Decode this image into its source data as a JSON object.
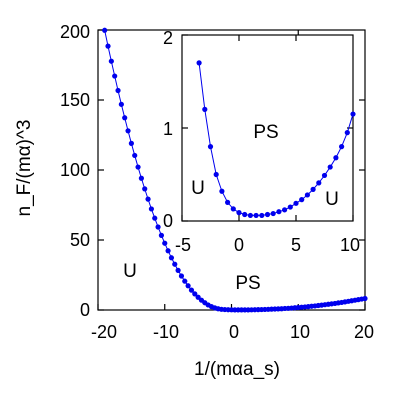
{
  "chart_data": [
    {
      "type": "scatter",
      "xlabel": "1/(mαa_s)",
      "ylabel": "n_F/(mα)^3",
      "xlim": [
        -20,
        20
      ],
      "ylim": [
        0,
        200
      ],
      "xticks": [
        "-20",
        "-10",
        "0",
        "10",
        "20"
      ],
      "yticks": [
        "0",
        "50",
        "100",
        "150",
        "200"
      ],
      "grid": false,
      "color": "#0000ee",
      "annotations": [
        "U",
        "PS"
      ],
      "series": [
        {
          "x": [
            -19,
            -18.5,
            -18,
            -17.5,
            -17,
            -16.5,
            -16,
            -15.5,
            -15,
            -14.5,
            -14,
            -13.5,
            -13,
            -12.5,
            -12,
            -11.5,
            -11,
            -10.5,
            -10,
            -9.5,
            -9,
            -8.5,
            -8,
            -7.5,
            -7,
            -6.5,
            -6,
            -5.5,
            -5,
            -4.5,
            -4,
            -3.5,
            -3,
            -2.5,
            -2,
            -1.5,
            -1,
            -0.5,
            0,
            0.5,
            1,
            1.5,
            2,
            2.5,
            3,
            3.5,
            4,
            4.5,
            5,
            5.5,
            6,
            6.5,
            7,
            7.5,
            8,
            8.5,
            9,
            9.5,
            10,
            10.5,
            11,
            11.5,
            12,
            12.5,
            13,
            13.5,
            14,
            14.5,
            15,
            15.5,
            16,
            16.5,
            17,
            17.5,
            18,
            18.5,
            19,
            19.5,
            20
          ],
          "y": [
            199.8,
            188.5,
            177.7,
            167.1,
            156.8,
            146.9,
            137.3,
            128.0,
            119.0,
            110.4,
            102.1,
            94.1,
            86.5,
            79.2,
            72.2,
            65.6,
            59.3,
            53.3,
            47.7,
            42.3,
            37.3,
            32.7,
            28.3,
            24.3,
            20.6,
            17.3,
            14.2,
            11.5,
            9.1,
            7.0,
            5.2,
            3.6,
            2.4,
            1.5,
            0.9,
            0.5,
            0.3,
            0.2,
            0.15,
            0.1,
            0.1,
            0.1,
            0.1,
            0.1,
            0.15,
            0.2,
            0.25,
            0.3,
            0.4,
            0.5,
            0.6,
            0.7,
            0.8,
            0.9,
            1.1,
            1.2,
            1.4,
            1.6,
            1.8,
            2.0,
            2.2,
            2.4,
            2.7,
            2.9,
            3.2,
            3.5,
            3.8,
            4.1,
            4.4,
            4.7,
            5.1,
            5.4,
            5.8,
            6.2,
            6.6,
            7.0,
            7.4,
            7.8,
            8.2
          ]
        }
      ]
    },
    {
      "type": "scatter",
      "xlim": [
        -5,
        10
      ],
      "ylim": [
        0,
        2
      ],
      "xticks": [
        "-5",
        "0",
        "5",
        "10"
      ],
      "yticks": [
        "0",
        "1",
        "2"
      ],
      "grid": false,
      "color": "#0000ee",
      "annotations": [
        "PS",
        "U",
        "U"
      ],
      "series": [
        {
          "x": [
            -3.5,
            -3,
            -2.5,
            -2,
            -1.5,
            -1,
            -0.5,
            0,
            0.5,
            1,
            1.5,
            2,
            2.5,
            3,
            3.5,
            4,
            4.5,
            5,
            5.5,
            6,
            6.5,
            7,
            7.5,
            8,
            8.5,
            9,
            9.5,
            10
          ],
          "y": [
            1.7,
            1.2,
            0.8,
            0.5,
            0.32,
            0.2,
            0.13,
            0.09,
            0.07,
            0.06,
            0.06,
            0.06,
            0.07,
            0.08,
            0.1,
            0.12,
            0.15,
            0.19,
            0.23,
            0.28,
            0.34,
            0.41,
            0.49,
            0.58,
            0.68,
            0.8,
            0.95,
            1.15
          ]
        }
      ]
    }
  ]
}
